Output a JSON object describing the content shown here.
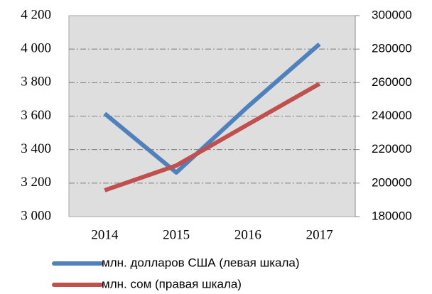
{
  "chart_data": {
    "type": "line",
    "categories": [
      "2014",
      "2015",
      "2016",
      "2017"
    ],
    "series": [
      {
        "name": "млн. долларов США (левая шкала)",
        "color": "#4f81bd",
        "values": [
          3615,
          3263,
          3657,
          4030
        ]
      },
      {
        "name": "млн. сом (правая шкала)",
        "color": "#c0504d",
        "axis": "y2",
        "values": [
          195700,
          210500,
          235000,
          259300
        ]
      }
    ],
    "ylim": [
      3000,
      4200
    ],
    "yticks": [
      {
        "value": 3000,
        "label": "3 000"
      },
      {
        "value": 3200,
        "label": "3 200"
      },
      {
        "value": 3400,
        "label": "3 400"
      },
      {
        "value": 3600,
        "label": "3 600"
      },
      {
        "value": 3800,
        "label": "3 800"
      },
      {
        "value": 4000,
        "label": "4 000"
      },
      {
        "value": 4200,
        "label": "4 200"
      }
    ],
    "y2lim": [
      180000,
      300000
    ],
    "y2ticks": [
      180000,
      200000,
      220000,
      240000,
      260000,
      280000,
      300000
    ],
    "grid": true,
    "legend": "bottom"
  }
}
